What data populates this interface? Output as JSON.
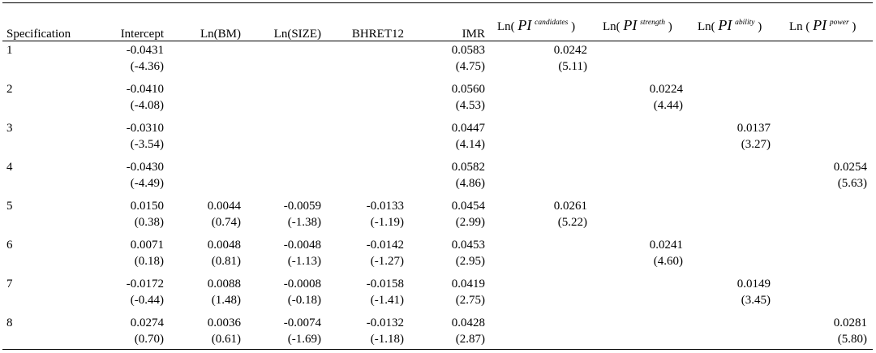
{
  "header": {
    "specification": "Specification",
    "intercept": "Intercept",
    "ln_bm": "Ln(BM)",
    "ln_size": "Ln(SIZE)",
    "bhret12": "BHRET12",
    "imr": "IMR",
    "ln_prefix": "Ln(",
    "ln_prefix_spaced": "Ln (",
    "pi": "PI",
    "close": ")",
    "sup_candidates": "candidates",
    "sup_strength": "strength",
    "sup_ability": "ability",
    "sup_power": "power"
  },
  "rows": [
    {
      "spec": "1",
      "intercept": [
        "-0.0431",
        "(-4.36)"
      ],
      "bm": [
        "",
        ""
      ],
      "size": [
        "",
        ""
      ],
      "bhret": [
        "",
        ""
      ],
      "imr": [
        "0.0583",
        "(4.75)"
      ],
      "cand": [
        "0.0242",
        "(5.11)"
      ],
      "str": [
        "",
        ""
      ],
      "abil": [
        "",
        ""
      ],
      "pow": [
        "",
        ""
      ]
    },
    {
      "spec": "2",
      "intercept": [
        "-0.0410",
        "(-4.08)"
      ],
      "bm": [
        "",
        ""
      ],
      "size": [
        "",
        ""
      ],
      "bhret": [
        "",
        ""
      ],
      "imr": [
        "0.0560",
        "(4.53)"
      ],
      "cand": [
        "",
        ""
      ],
      "str": [
        "0.0224",
        "(4.44)"
      ],
      "abil": [
        "",
        ""
      ],
      "pow": [
        "",
        ""
      ]
    },
    {
      "spec": "3",
      "intercept": [
        "-0.0310",
        "(-3.54)"
      ],
      "bm": [
        "",
        ""
      ],
      "size": [
        "",
        ""
      ],
      "bhret": [
        "",
        ""
      ],
      "imr": [
        "0.0447",
        "(4.14)"
      ],
      "cand": [
        "",
        ""
      ],
      "str": [
        "",
        ""
      ],
      "abil": [
        "0.0137",
        "(3.27)"
      ],
      "pow": [
        "",
        ""
      ]
    },
    {
      "spec": "4",
      "intercept": [
        "-0.0430",
        "(-4.49)"
      ],
      "bm": [
        "",
        ""
      ],
      "size": [
        "",
        ""
      ],
      "bhret": [
        "",
        ""
      ],
      "imr": [
        "0.0582",
        "(4.86)"
      ],
      "cand": [
        "",
        ""
      ],
      "str": [
        "",
        ""
      ],
      "abil": [
        "",
        ""
      ],
      "pow": [
        "0.0254",
        "(5.63)"
      ]
    },
    {
      "spec": "5",
      "intercept": [
        "0.0150",
        "(0.38)"
      ],
      "bm": [
        "0.0044",
        "(0.74)"
      ],
      "size": [
        "-0.0059",
        "(-1.38)"
      ],
      "bhret": [
        "-0.0133",
        "(-1.19)"
      ],
      "imr": [
        "0.0454",
        "(2.99)"
      ],
      "cand": [
        "0.0261",
        "(5.22)"
      ],
      "str": [
        "",
        ""
      ],
      "abil": [
        "",
        ""
      ],
      "pow": [
        "",
        ""
      ]
    },
    {
      "spec": "6",
      "intercept": [
        "0.0071",
        "(0.18)"
      ],
      "bm": [
        "0.0048",
        "(0.81)"
      ],
      "size": [
        "-0.0048",
        "(-1.13)"
      ],
      "bhret": [
        "-0.0142",
        "(-1.27)"
      ],
      "imr": [
        "0.0453",
        "(2.95)"
      ],
      "cand": [
        "",
        ""
      ],
      "str": [
        "0.0241",
        "(4.60)"
      ],
      "abil": [
        "",
        ""
      ],
      "pow": [
        "",
        ""
      ]
    },
    {
      "spec": "7",
      "intercept": [
        "-0.0172",
        "(-0.44)"
      ],
      "bm": [
        "0.0088",
        "(1.48)"
      ],
      "size": [
        "-0.0008",
        "(-0.18)"
      ],
      "bhret": [
        "-0.0158",
        "(-1.41)"
      ],
      "imr": [
        "0.0419",
        "(2.75)"
      ],
      "cand": [
        "",
        ""
      ],
      "str": [
        "",
        ""
      ],
      "abil": [
        "0.0149",
        "(3.45)"
      ],
      "pow": [
        "",
        ""
      ]
    },
    {
      "spec": "8",
      "intercept": [
        "0.0274",
        "(0.70)"
      ],
      "bm": [
        "0.0036",
        "(0.61)"
      ],
      "size": [
        "-0.0074",
        "(-1.69)"
      ],
      "bhret": [
        "-0.0132",
        "(-1.18)"
      ],
      "imr": [
        "0.0428",
        "(2.87)"
      ],
      "cand": [
        "",
        ""
      ],
      "str": [
        "",
        ""
      ],
      "abil": [
        "",
        ""
      ],
      "pow": [
        "0.0281",
        "(5.80)"
      ]
    }
  ]
}
